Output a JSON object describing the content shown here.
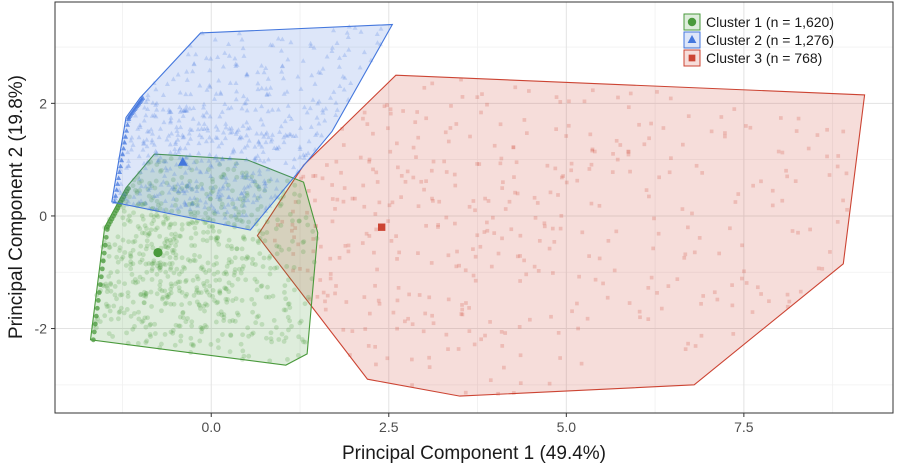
{
  "chart_data": {
    "type": "scatter",
    "xlabel": "Principal Component 1 (49.4%)",
    "ylabel": "Principal Component 2 (19.8%)",
    "xlim": [
      -2.2,
      9.6
    ],
    "ylim": [
      -3.5,
      3.8
    ],
    "x_ticks": [
      0.0,
      2.5,
      5.0,
      7.5
    ],
    "x_tick_labels": [
      "0.0",
      "2.5",
      "5.0",
      "7.5"
    ],
    "y_ticks": [
      -2,
      0,
      2
    ],
    "y_tick_labels": [
      "-2",
      "0",
      "2"
    ],
    "grid": true,
    "legend_position": "top-right",
    "series": [
      {
        "name": "Cluster 1 (n = 1,620)",
        "color": "#4a9a3c",
        "marker": "circle",
        "n": 1620,
        "centroid": [
          -0.75,
          -0.65
        ],
        "hull": [
          [
            -1.7,
            -2.2
          ],
          [
            -1.5,
            -0.2
          ],
          [
            -1.2,
            0.5
          ],
          [
            -0.8,
            1.1
          ],
          [
            0.5,
            1.0
          ],
          [
            1.3,
            0.6
          ],
          [
            1.5,
            -0.3
          ],
          [
            1.35,
            -2.45
          ],
          [
            1.05,
            -2.65
          ],
          [
            -1.7,
            -2.2
          ]
        ]
      },
      {
        "name": "Cluster 2 (n = 1,276)",
        "color": "#4477dd",
        "marker": "triangle",
        "n": 1276,
        "centroid": [
          -0.4,
          0.95
        ],
        "hull": [
          [
            -1.4,
            0.25
          ],
          [
            -1.2,
            1.75
          ],
          [
            -1.0,
            2.1
          ],
          [
            -0.15,
            3.25
          ],
          [
            2.55,
            3.4
          ],
          [
            1.7,
            1.5
          ],
          [
            0.55,
            -0.25
          ],
          [
            -1.4,
            0.25
          ]
        ]
      },
      {
        "name": "Cluster 3 (n = 768)",
        "color": "#cc4433",
        "marker": "square",
        "n": 768,
        "centroid": [
          2.4,
          -0.2
        ],
        "hull": [
          [
            0.65,
            -0.35
          ],
          [
            1.3,
            0.9
          ],
          [
            2.6,
            2.5
          ],
          [
            9.2,
            2.15
          ],
          [
            8.9,
            -0.85
          ],
          [
            6.8,
            -3.0
          ],
          [
            3.5,
            -3.2
          ],
          [
            2.2,
            -2.9
          ],
          [
            0.65,
            -0.35
          ]
        ]
      }
    ]
  }
}
